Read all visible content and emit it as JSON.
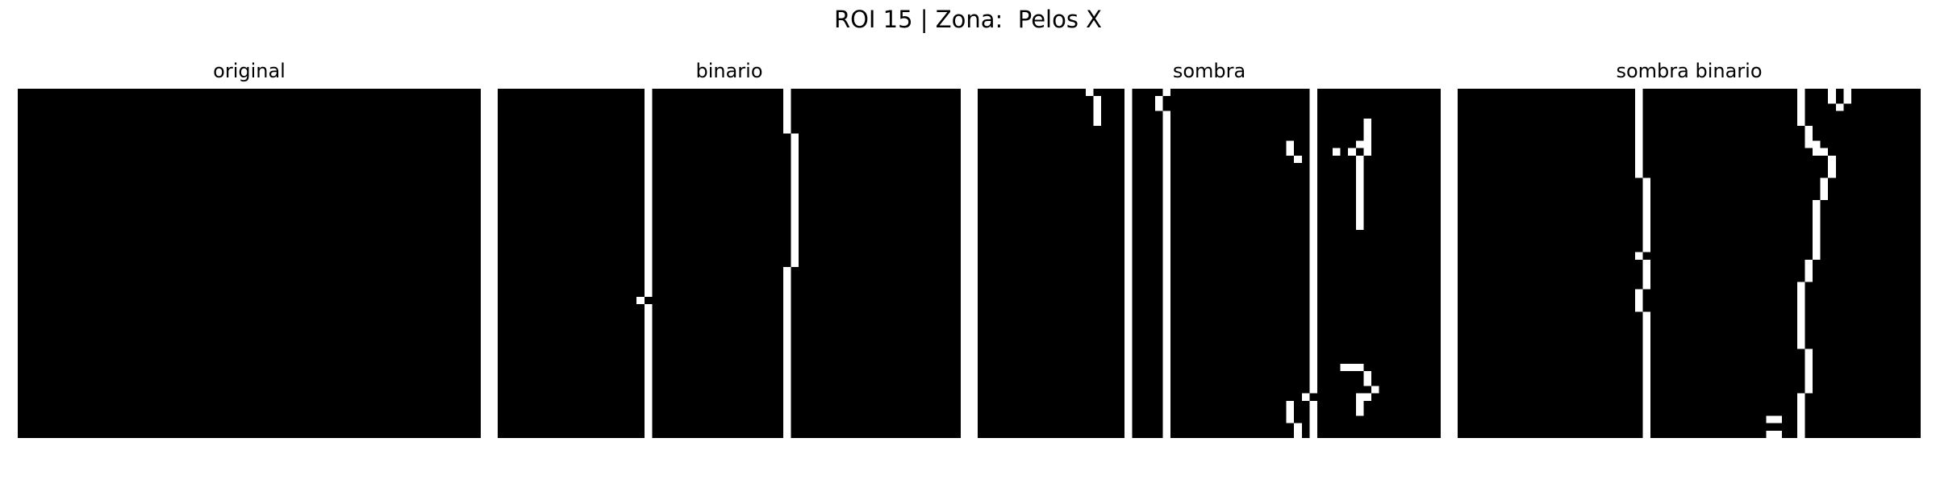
{
  "figure": {
    "title": "ROI 15 | Zona:  Pelos X",
    "background": "#000000",
    "foreground": "#ffffff"
  },
  "panels": [
    {
      "title": "original",
      "pixels": []
    },
    {
      "title": "binario",
      "pixels": [
        [
          19,
          0,
          1,
          28
        ],
        [
          18,
          28,
          1,
          1
        ],
        [
          19,
          29,
          1,
          18
        ],
        [
          37,
          0,
          1,
          6
        ],
        [
          38,
          6,
          1,
          18
        ],
        [
          37,
          24,
          1,
          23
        ]
      ]
    },
    {
      "title": "sombra",
      "pixels": [
        [
          14,
          0,
          1,
          1
        ],
        [
          15,
          1,
          1,
          4
        ],
        [
          19,
          0,
          1,
          47
        ],
        [
          24,
          0,
          1,
          1
        ],
        [
          23,
          1,
          1,
          2
        ],
        [
          24,
          3,
          1,
          44
        ],
        [
          43,
          0,
          1,
          41
        ],
        [
          42,
          41,
          1,
          1
        ],
        [
          43,
          42,
          1,
          5
        ],
        [
          40,
          7,
          1,
          2
        ],
        [
          41,
          9,
          1,
          1
        ],
        [
          40,
          42,
          1,
          3
        ],
        [
          41,
          45,
          1,
          2
        ],
        [
          46,
          8,
          1,
          1
        ],
        [
          50,
          4,
          1,
          3
        ],
        [
          49,
          7,
          1,
          1
        ],
        [
          50,
          7,
          1,
          2
        ],
        [
          49,
          9,
          1,
          1
        ],
        [
          48,
          8,
          1,
          1
        ],
        [
          49,
          9,
          1,
          10
        ],
        [
          47,
          37,
          3,
          1
        ],
        [
          50,
          38,
          1,
          2
        ],
        [
          51,
          40,
          1,
          1
        ],
        [
          50,
          41,
          1,
          1
        ],
        [
          49,
          41,
          1,
          3
        ]
      ]
    },
    {
      "title": "sombra binario",
      "pixels": [
        [
          23,
          0,
          1,
          12
        ],
        [
          24,
          12,
          1,
          10
        ],
        [
          23,
          22,
          1,
          1
        ],
        [
          24,
          23,
          1,
          4
        ],
        [
          23,
          27,
          1,
          3
        ],
        [
          24,
          30,
          1,
          17
        ],
        [
          44,
          0,
          1,
          5
        ],
        [
          45,
          5,
          1,
          3
        ],
        [
          46,
          7,
          1,
          2
        ],
        [
          47,
          8,
          1,
          1
        ],
        [
          48,
          9,
          1,
          3
        ],
        [
          47,
          12,
          1,
          3
        ],
        [
          46,
          15,
          1,
          8
        ],
        [
          45,
          23,
          1,
          3
        ],
        [
          44,
          26,
          1,
          9
        ],
        [
          45,
          35,
          1,
          6
        ],
        [
          44,
          41,
          1,
          6
        ],
        [
          48,
          0,
          1,
          2
        ],
        [
          49,
          2,
          1,
          1
        ],
        [
          50,
          0,
          1,
          2
        ],
        [
          40,
          44,
          1,
          1
        ],
        [
          41,
          44,
          1,
          1
        ],
        [
          40,
          46,
          1,
          1
        ],
        [
          41,
          46,
          1,
          1
        ]
      ]
    }
  ]
}
